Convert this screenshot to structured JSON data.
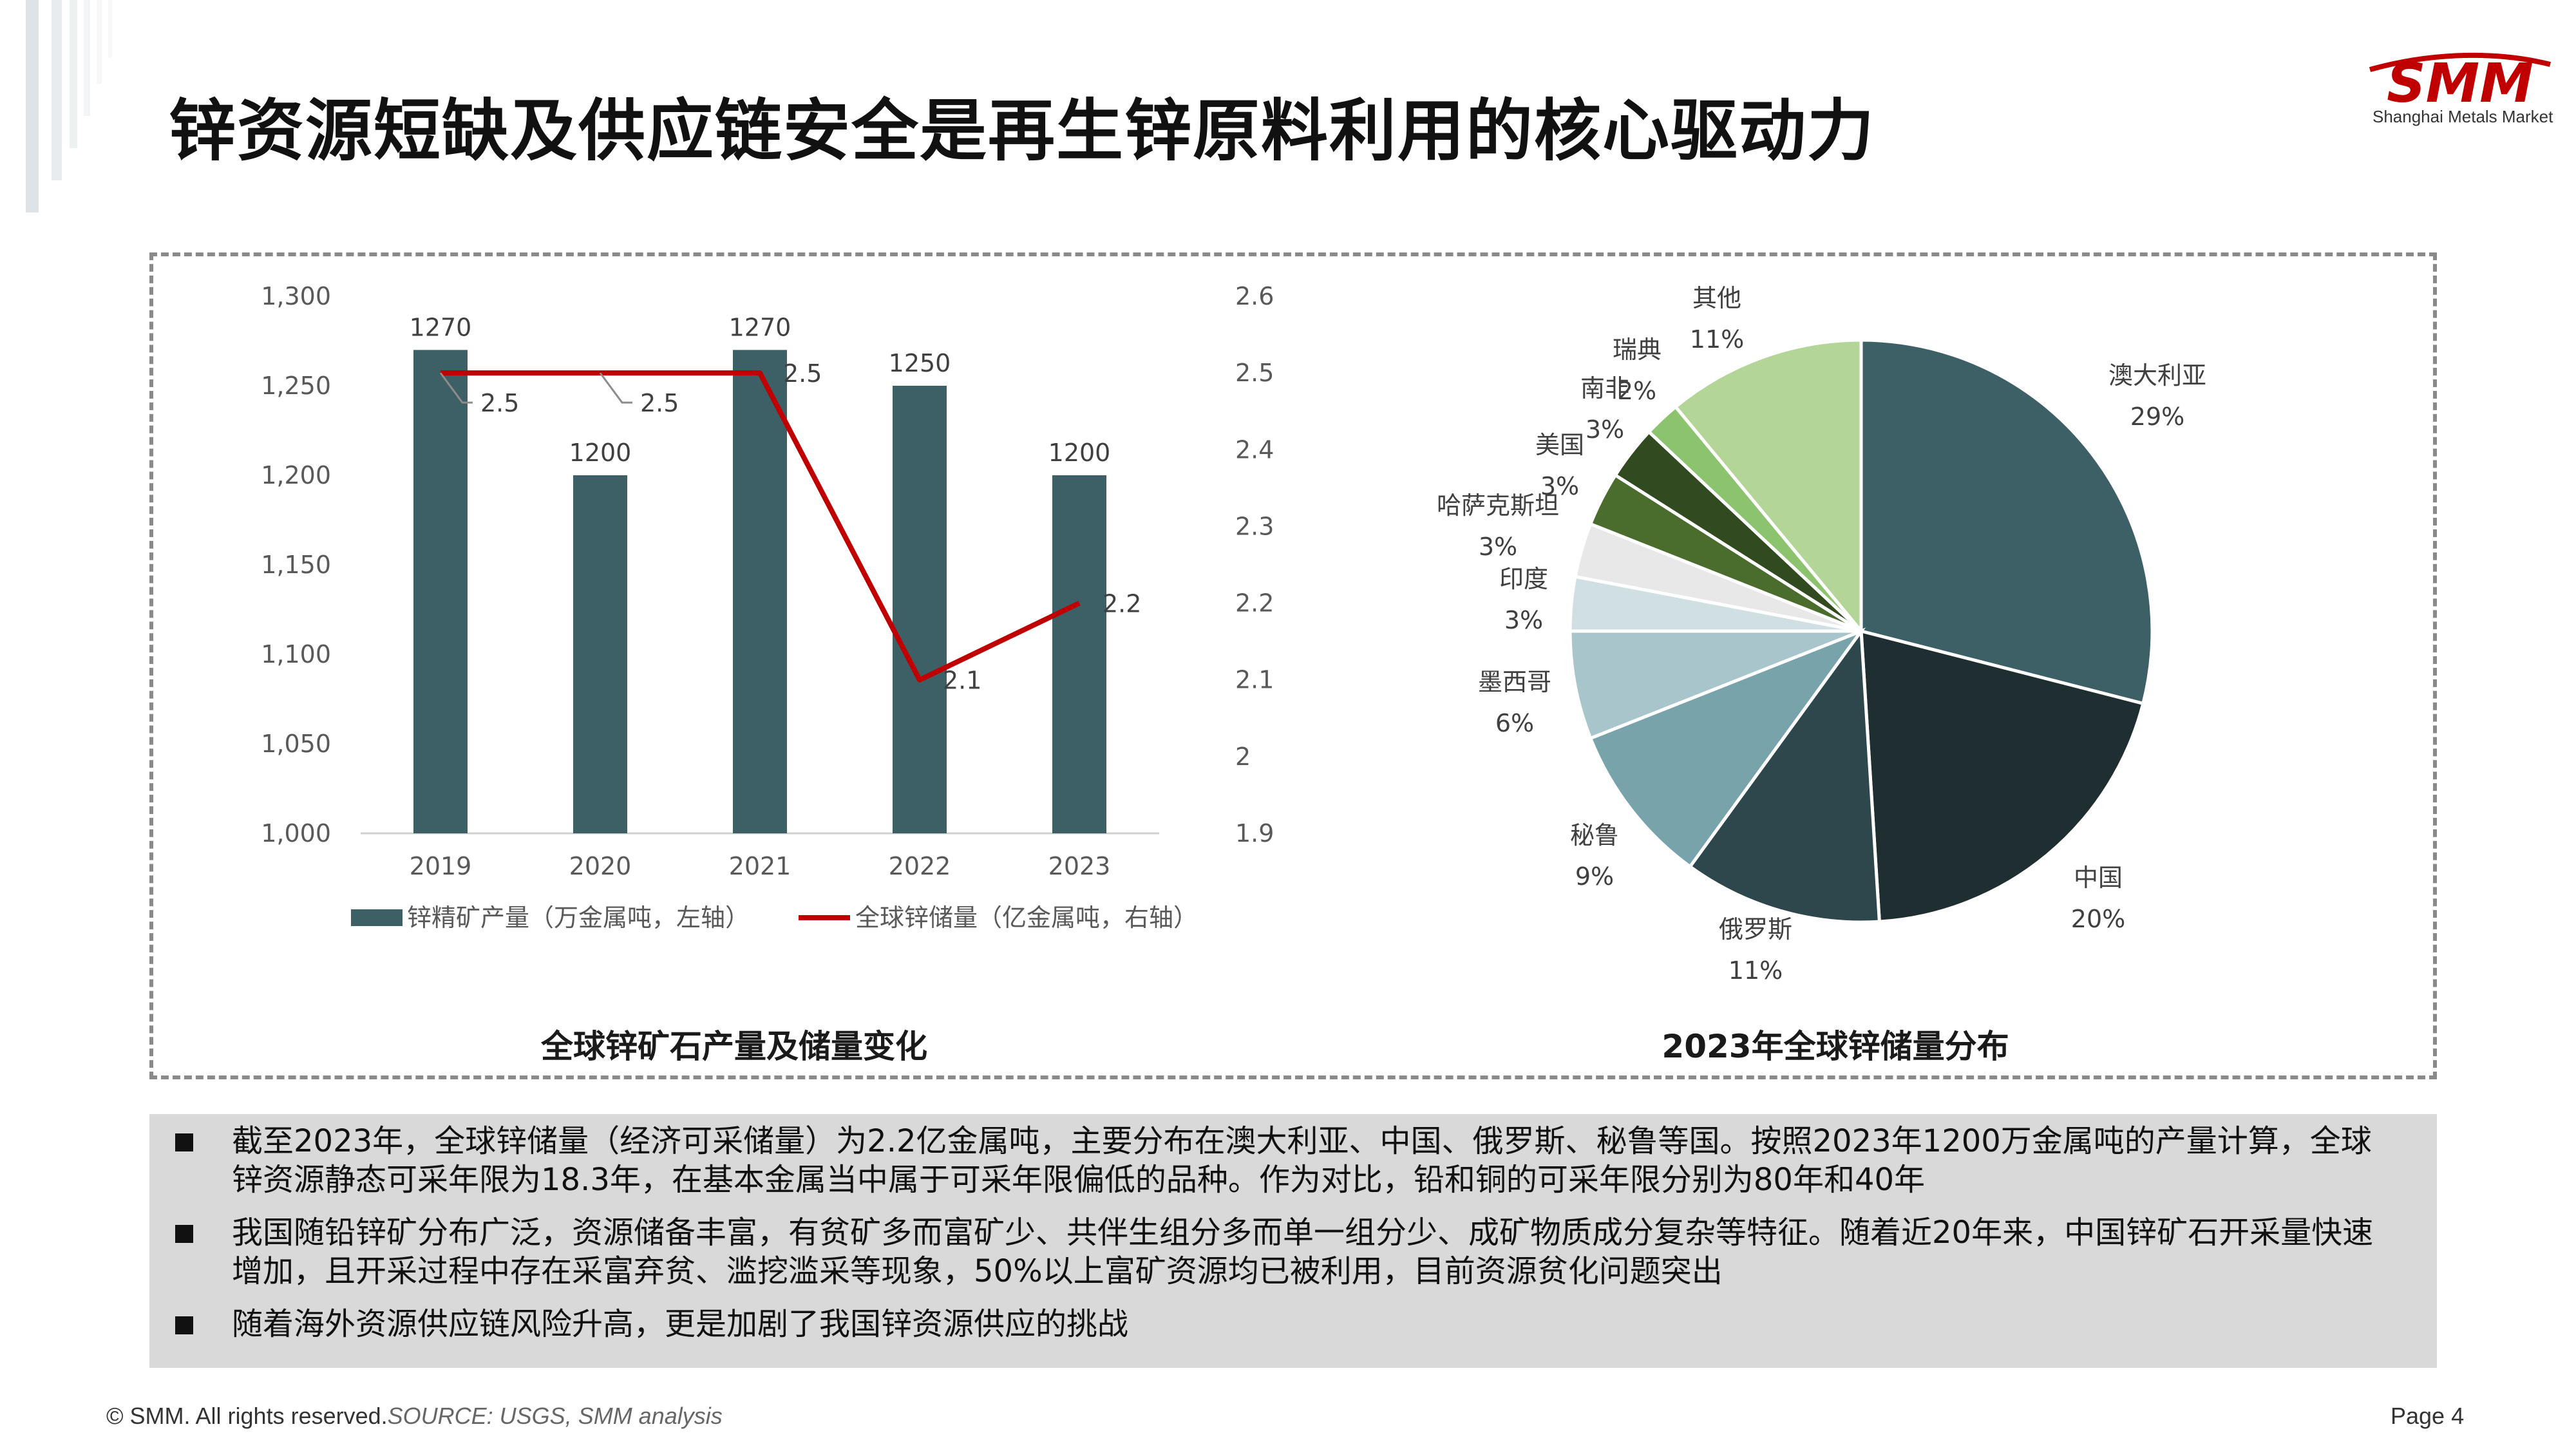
{
  "slide": {
    "title": "锌资源短缺及供应链安全是再生锌原料利用的核心驱动力",
    "logo": {
      "mark": "SMM",
      "subtitle": "Shanghai Metals Market"
    },
    "brand_color": "#c00000",
    "footer": {
      "copyright": "© SMM. All rights reserved.",
      "source": "SOURCE: USGS, SMM analysis",
      "page": "Page 4"
    }
  },
  "chart_data": [
    {
      "type": "bar",
      "title": "全球锌矿石产量及储量变化",
      "categories": [
        "2019",
        "2020",
        "2021",
        "2022",
        "2023"
      ],
      "series": [
        {
          "name": "锌精矿产量（万金属吨，左轴）",
          "type": "bar",
          "axis": "left",
          "color": "#3d5f66",
          "values": [
            1270,
            1200,
            1270,
            1250,
            1200
          ]
        },
        {
          "name": "全球锌储量（亿金属吨，右轴）",
          "type": "line",
          "axis": "right",
          "color": "#c00000",
          "values": [
            2.5,
            2.5,
            2.5,
            2.1,
            2.2
          ]
        }
      ],
      "left_axis": {
        "range": [
          1000,
          1300
        ],
        "ticks": [
          "1,000",
          "1,050",
          "1,100",
          "1,150",
          "1,200",
          "1,250",
          "1,300"
        ]
      },
      "right_axis": {
        "range": [
          1.9,
          2.6
        ],
        "ticks": [
          "1.9",
          "2",
          "2.1",
          "2.2",
          "2.3",
          "2.4",
          "2.5",
          "2.6"
        ]
      },
      "bar_labels": [
        "1270",
        "1200",
        "1270",
        "1250",
        "1200"
      ],
      "line_labels": [
        "2.5",
        "2.5",
        "2.5",
        "2.1",
        "2.2"
      ],
      "legend_position": "bottom",
      "grid": false
    },
    {
      "type": "pie",
      "title": "2023年全球锌储量分布",
      "slices": [
        {
          "label": "澳大利亚",
          "value": 29,
          "text": "29%",
          "color": "#3d5f66"
        },
        {
          "label": "中国",
          "value": 20,
          "text": "20%",
          "color": "#1f2e31"
        },
        {
          "label": "俄罗斯",
          "value": 11,
          "text": "11%",
          "color": "#2d474c"
        },
        {
          "label": "秘鲁",
          "value": 9,
          "text": "9%",
          "color": "#78a3ab"
        },
        {
          "label": "墨西哥",
          "value": 6,
          "text": "6%",
          "color": "#a7c5ca"
        },
        {
          "label": "印度",
          "value": 3,
          "text": "3%",
          "color": "#d0e0e2"
        },
        {
          "label": "哈萨克斯坦",
          "value": 3,
          "text": "3%",
          "color": "#e8e8e8"
        },
        {
          "label": "美国",
          "value": 3,
          "text": "3%",
          "color": "#4a6d2e"
        },
        {
          "label": "南非",
          "value": 3,
          "text": "3%",
          "color": "#314a1f"
        },
        {
          "label": "瑞典",
          "value": 2,
          "text": "2%",
          "color": "#8cc36e"
        },
        {
          "label": "其他",
          "value": 11,
          "text": "11%",
          "color": "#b3d597"
        }
      ],
      "start": "12 o'clock, clockwise"
    }
  ],
  "notes": [
    "截至2023年，全球锌储量（经济可采储量）为2.2亿金属吨，主要分布在澳大利亚、中国、俄罗斯、秘鲁等国。按照2023年1200万金属吨的产量计算，全球锌资源静态可采年限为18.3年，在基本金属当中属于可采年限偏低的品种。作为对比，铅和铜的可采年限分别为80年和40年",
    "我国随铅锌矿分布广泛，资源储备丰富，有贫矿多而富矿少、共伴生组分多而单一组分少、成矿物质成分复杂等特征。随着近20年来，中国锌矿石开采量快速增加，且开采过程中存在采富弃贫、滥挖滥采等现象，50%以上富矿资源均已被利用，目前资源贫化问题突出",
    "随着海外资源供应链风险升高，更是加剧了我国锌资源供应的挑战"
  ]
}
